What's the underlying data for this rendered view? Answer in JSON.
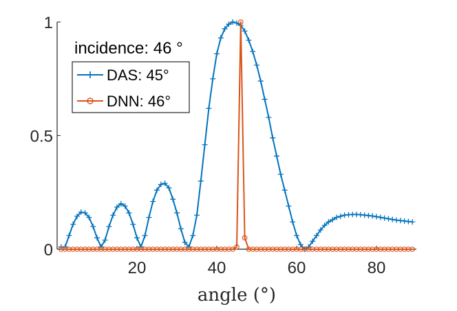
{
  "chart_data": {
    "type": "line",
    "title": "",
    "xlabel": "angle (°)",
    "ylabel": "",
    "xlim": [
      0,
      90
    ],
    "ylim": [
      0,
      1
    ],
    "xticks": [
      20,
      40,
      60,
      80
    ],
    "yticks": [
      0,
      0.5,
      1
    ],
    "xtick_labels": [
      "20",
      "40",
      "60",
      "80"
    ],
    "ytick_labels": [
      "0",
      "0.5",
      "1"
    ],
    "annotation": "incidence: 46 °",
    "legend_position": "top-left",
    "series": [
      {
        "name": "DAS: 45°",
        "color": "#0072BD",
        "marker": "plus",
        "x": [
          1,
          2,
          3,
          4,
          5,
          6,
          7,
          8,
          9,
          10,
          11,
          12,
          13,
          14,
          15,
          16,
          17,
          18,
          19,
          20,
          21,
          22,
          23,
          24,
          25,
          26,
          27,
          28,
          29,
          30,
          31,
          32,
          33,
          34,
          35,
          36,
          37,
          38,
          39,
          40,
          41,
          42,
          43,
          44,
          45,
          46,
          47,
          48,
          49,
          50,
          51,
          52,
          53,
          54,
          55,
          56,
          57,
          58,
          59,
          60,
          61,
          62,
          63,
          64,
          65,
          66,
          67,
          68,
          69,
          70,
          71,
          72,
          73,
          74,
          75,
          76,
          77,
          78,
          79,
          80,
          81,
          82,
          83,
          84,
          85,
          86,
          87,
          88,
          89
        ],
        "values": [
          0.01,
          0.01,
          0.06,
          0.11,
          0.145,
          0.163,
          0.16,
          0.14,
          0.1,
          0.05,
          0.01,
          0.04,
          0.1,
          0.15,
          0.185,
          0.2,
          0.19,
          0.16,
          0.11,
          0.05,
          0.01,
          0.06,
          0.14,
          0.21,
          0.26,
          0.285,
          0.29,
          0.27,
          0.22,
          0.16,
          0.09,
          0.03,
          0.01,
          0.06,
          0.15,
          0.3,
          0.46,
          0.62,
          0.75,
          0.86,
          0.93,
          0.97,
          0.99,
          1.0,
          0.995,
          0.985,
          0.96,
          0.92,
          0.87,
          0.81,
          0.74,
          0.66,
          0.58,
          0.49,
          0.41,
          0.33,
          0.26,
          0.19,
          0.12,
          0.06,
          0.02,
          0.0,
          0.01,
          0.035,
          0.06,
          0.085,
          0.105,
          0.12,
          0.13,
          0.14,
          0.145,
          0.15,
          0.152,
          0.153,
          0.153,
          0.152,
          0.15,
          0.148,
          0.146,
          0.143,
          0.14,
          0.137,
          0.134,
          0.131,
          0.128,
          0.126,
          0.124,
          0.122,
          0.12
        ]
      },
      {
        "name": "DNN: 46°",
        "color": "#D95319",
        "marker": "circle",
        "x": [
          1,
          2,
          3,
          4,
          5,
          6,
          7,
          8,
          9,
          10,
          11,
          12,
          13,
          14,
          15,
          16,
          17,
          18,
          19,
          20,
          21,
          22,
          23,
          24,
          25,
          26,
          27,
          28,
          29,
          30,
          31,
          32,
          33,
          34,
          35,
          36,
          37,
          38,
          39,
          40,
          41,
          42,
          43,
          44,
          45,
          46,
          47,
          48,
          49,
          50,
          51,
          52,
          53,
          54,
          55,
          56,
          57,
          58,
          59,
          60,
          61,
          62,
          63,
          64,
          65,
          66,
          67,
          68,
          69,
          70,
          71,
          72,
          73,
          74,
          75,
          76,
          77,
          78,
          79,
          80,
          81,
          82,
          83,
          84,
          85,
          86,
          87,
          88,
          89
        ],
        "values": [
          0,
          0,
          0,
          0,
          0,
          0,
          0,
          0,
          0,
          0,
          0,
          0,
          0,
          0,
          0,
          0,
          0,
          0,
          0,
          0,
          0,
          0,
          0,
          0,
          0,
          0,
          0,
          0,
          0,
          0,
          0,
          0,
          0,
          0,
          0,
          0,
          0,
          0,
          0,
          0,
          0,
          0,
          0,
          0,
          0.01,
          1.0,
          0.05,
          0,
          0,
          0,
          0,
          0,
          0,
          0,
          0,
          0,
          0,
          0,
          0,
          0,
          0,
          0,
          0,
          0,
          0,
          0,
          0,
          0,
          0,
          0,
          0,
          0,
          0,
          0,
          0,
          0,
          0,
          0,
          0,
          0,
          0,
          0,
          0,
          0,
          0,
          0,
          0,
          0,
          0
        ]
      }
    ]
  }
}
